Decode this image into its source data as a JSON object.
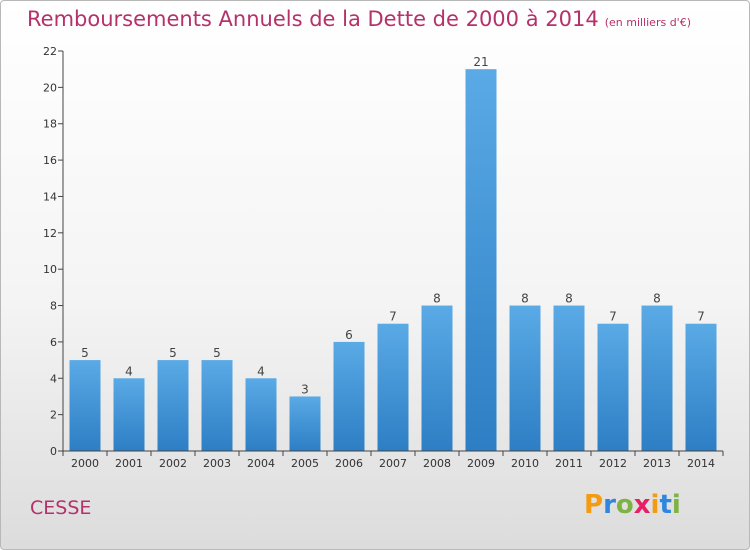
{
  "title": "Remboursements Annuels de la Dette de 2000 à 2014",
  "unit_note": "(en milliers d'€)",
  "commune": "CESSE",
  "brand": {
    "text": "Proxiti",
    "letters": [
      "P",
      "r",
      "o",
      "x",
      "i",
      "t",
      "i"
    ],
    "colors": [
      "#f39c12",
      "#2e86de",
      "#7cb342",
      "#e91e63",
      "#f39c12",
      "#2e86de",
      "#7cb342"
    ]
  },
  "colors": {
    "title": "#b5316a",
    "bar_top": "#5aaae6",
    "bar_bottom": "#2d7ec4",
    "axis": "#444444"
  },
  "chart_data": {
    "type": "bar",
    "title": "Remboursements Annuels de la Dette de 2000 à 2014",
    "xlabel": "",
    "ylabel": "",
    "categories": [
      "2000",
      "2001",
      "2002",
      "2003",
      "2004",
      "2005",
      "2006",
      "2007",
      "2008",
      "2009",
      "2010",
      "2011",
      "2012",
      "2013",
      "2014"
    ],
    "values": [
      5,
      4,
      5,
      5,
      4,
      3,
      6,
      7,
      8,
      21,
      8,
      8,
      7,
      8,
      7
    ],
    "ylim": [
      0,
      22
    ],
    "yticks": [
      0,
      2,
      4,
      6,
      8,
      10,
      12,
      14,
      16,
      18,
      20,
      22
    ],
    "grid": false,
    "data_labels": true
  }
}
